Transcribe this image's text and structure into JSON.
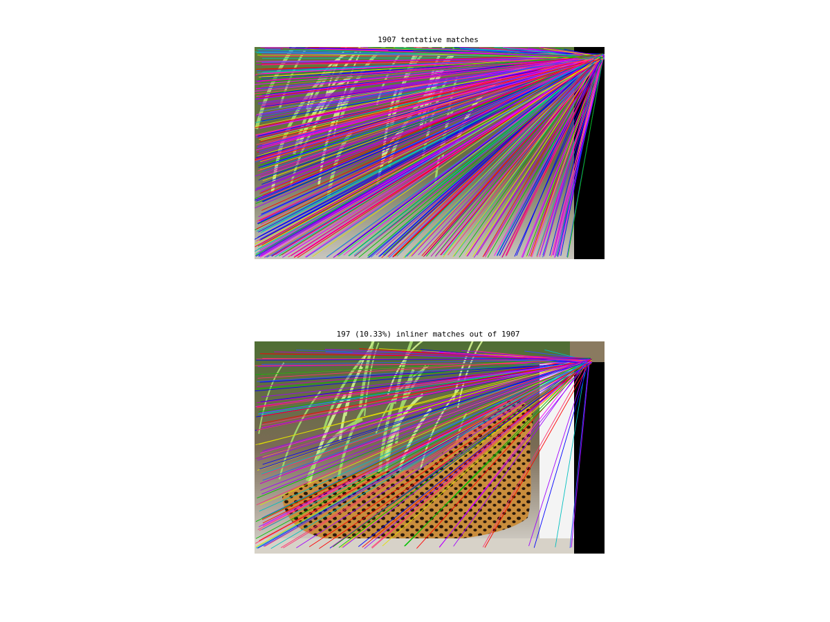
{
  "figure": {
    "top": {
      "title": "1907 tentative matches"
    },
    "bottom": {
      "title": "197 (10.33%) inliner matches out of 1907"
    },
    "colors": {
      "background": "#ffffff",
      "black_bar": "#000000",
      "line_palette": [
        "#0000ff",
        "#ff0000",
        "#00c000",
        "#c000c0",
        "#00bfbf",
        "#e0e000",
        "#ff00ff",
        "#3050ff",
        "#a000ff",
        "#ff3070"
      ]
    }
  }
}
